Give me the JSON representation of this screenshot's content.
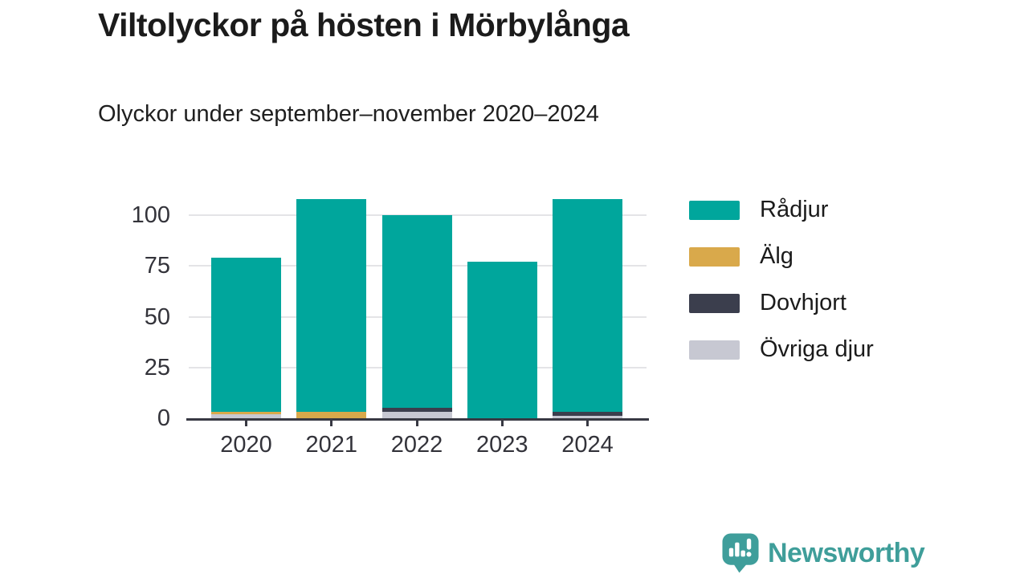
{
  "header": {
    "title": "Viltolyckor på hösten i Mörbylånga",
    "subtitle": "Olyckor under september–november 2020–2024"
  },
  "chart_data": {
    "type": "bar",
    "stacked": true,
    "title": "Viltolyckor på hösten i Mörbylånga",
    "subtitle": "Olyckor under september–november 2020–2024",
    "categories": [
      "2020",
      "2021",
      "2022",
      "2023",
      "2024"
    ],
    "series": [
      {
        "name": "Rådjur",
        "color": "#00a69c",
        "values": [
          76,
          105,
          95,
          77,
          105
        ]
      },
      {
        "name": "Älg",
        "color": "#d9a94b",
        "values": [
          1,
          3,
          0,
          0,
          0
        ]
      },
      {
        "name": "Dovhjort",
        "color": "#3b3e4d",
        "values": [
          0,
          0,
          2,
          0,
          2
        ]
      },
      {
        "name": "Övriga djur",
        "color": "#c7c8d2",
        "values": [
          2,
          0,
          3,
          0,
          1
        ]
      }
    ],
    "totals": [
      79,
      108,
      100,
      77,
      108
    ],
    "stack_order_bottom_to_top": [
      "Övriga djur",
      "Dovhjort",
      "Älg",
      "Rådjur"
    ],
    "xlabel": "",
    "ylabel": "",
    "y_ticks": [
      0,
      25,
      50,
      75,
      100
    ],
    "ylim": [
      0,
      110
    ],
    "grid": true,
    "legend_position": "right",
    "axis_color": "#383943",
    "grid_color": "#e4e4e7"
  },
  "footer": {
    "brand": "Newsworthy",
    "brand_color": "#3f9e9a"
  }
}
